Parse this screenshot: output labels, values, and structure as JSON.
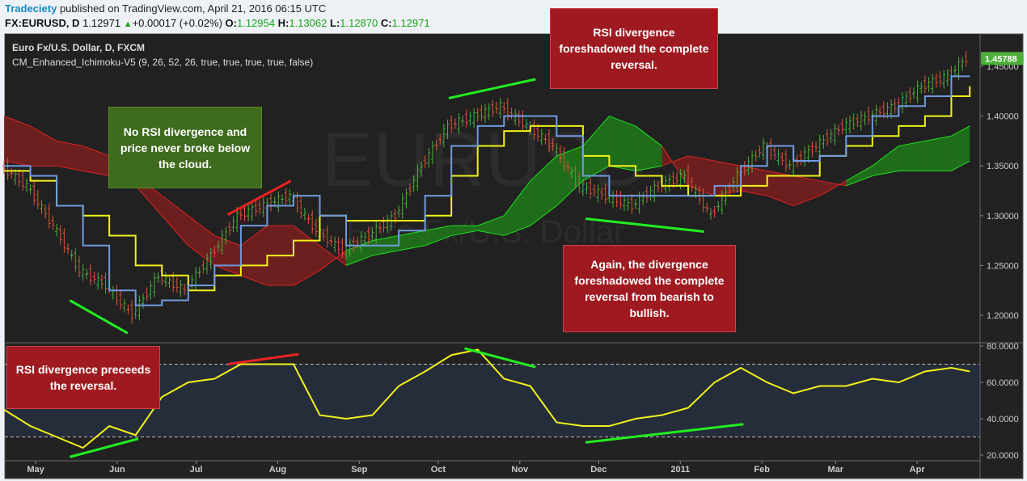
{
  "header": {
    "brand": "Tradeciety",
    "published": "published on TradingView.com, April 21, 2016 06:15 UTC",
    "symbol": "FX:EURUSD, D",
    "last": "1.12971",
    "change": "+0.00017 (+0.02%)",
    "open_label": "O:",
    "open": "1.12954",
    "high_label": "H:",
    "high": "1.13062",
    "low_label": "L:",
    "low": "1.12870",
    "close_label": "C:",
    "close": "1.12971",
    "change_icon": "triangle-up-icon"
  },
  "legend": {
    "title": "Euro Fx/U.S. Dollar, D, FXCM",
    "indicator": "CM_Enhanced_Ichimoku-V5 (9, 26, 52, 26, true, true, true, true, false)"
  },
  "watermark": {
    "symbol": "EURUSD",
    "description": "Euro Fx/U.S. Dollar"
  },
  "annotations": [
    {
      "text": "No RSI divergence and price never broke below the  cloud.",
      "color": "#3e6b1d"
    },
    {
      "text": "RSI divergence foreshadowed the complete reversal.",
      "color": "#9e1a20"
    },
    {
      "text": "Again, the divergence foreshadowed the complete reversal from bearish to bullish.",
      "color": "#9e1a20"
    },
    {
      "text": "RSI divergence preceeds the reversal.",
      "color": "#9e1a20"
    }
  ],
  "chart_data": [
    {
      "type": "line",
      "panel": "price",
      "ylim": [
        1.17,
        1.47
      ],
      "yticks": [
        "1.45000",
        "1.40000",
        "1.35000",
        "1.30000",
        "1.25000",
        "1.20000"
      ],
      "last_price_label": "1.45788",
      "xticks": [
        {
          "date": "2010-05-01",
          "label": "May"
        },
        {
          "date": "2010-06-01",
          "label": "Jun"
        },
        {
          "date": "2010-07-01",
          "label": "Jul"
        },
        {
          "date": "2010-08-01",
          "label": "Aug"
        },
        {
          "date": "2010-09-01",
          "label": "Sep"
        },
        {
          "date": "2010-10-01",
          "label": "Oct"
        },
        {
          "date": "2010-11-01",
          "label": "Nov"
        },
        {
          "date": "2010-12-01",
          "label": "Dec"
        },
        {
          "date": "2011-01-01",
          "label": "2011"
        },
        {
          "date": "2011-02-01",
          "label": "Feb"
        },
        {
          "date": "2011-03-01",
          "label": "Mar"
        },
        {
          "date": "2011-04-01",
          "label": "Apr"
        }
      ],
      "dates": [
        "2010-04-19",
        "2010-04-29",
        "2010-05-09",
        "2010-05-19",
        "2010-05-29",
        "2010-06-08",
        "2010-06-18",
        "2010-06-28",
        "2010-07-08",
        "2010-07-18",
        "2010-07-28",
        "2010-08-07",
        "2010-08-17",
        "2010-08-27",
        "2010-09-06",
        "2010-09-16",
        "2010-09-26",
        "2010-10-06",
        "2010-10-16",
        "2010-10-26",
        "2010-11-05",
        "2010-11-15",
        "2010-11-25",
        "2010-12-05",
        "2010-12-15",
        "2010-12-25",
        "2011-01-04",
        "2011-01-14",
        "2011-01-24",
        "2011-02-03",
        "2011-02-13",
        "2011-02-23",
        "2011-03-05",
        "2011-03-15",
        "2011-03-25",
        "2011-04-04",
        "2011-04-14",
        "2011-04-21"
      ],
      "close": [
        1.35,
        1.33,
        1.29,
        1.245,
        1.23,
        1.2,
        1.24,
        1.225,
        1.26,
        1.3,
        1.31,
        1.32,
        1.285,
        1.265,
        1.28,
        1.3,
        1.35,
        1.39,
        1.4,
        1.41,
        1.39,
        1.37,
        1.33,
        1.32,
        1.31,
        1.33,
        1.34,
        1.3,
        1.34,
        1.37,
        1.35,
        1.37,
        1.39,
        1.4,
        1.41,
        1.43,
        1.44,
        1.458
      ],
      "tenkan": [
        1.35,
        1.34,
        1.31,
        1.27,
        1.225,
        1.21,
        1.215,
        1.23,
        1.25,
        1.29,
        1.31,
        1.32,
        1.3,
        1.27,
        1.27,
        1.285,
        1.32,
        1.37,
        1.39,
        1.4,
        1.4,
        1.38,
        1.34,
        1.32,
        1.32,
        1.32,
        1.32,
        1.33,
        1.35,
        1.37,
        1.355,
        1.36,
        1.38,
        1.4,
        1.41,
        1.42,
        1.44,
        1.44
      ],
      "kijun": [
        1.345,
        1.335,
        1.31,
        1.3,
        1.28,
        1.25,
        1.24,
        1.225,
        1.24,
        1.25,
        1.26,
        1.275,
        1.3,
        1.295,
        1.295,
        1.295,
        1.3,
        1.34,
        1.37,
        1.385,
        1.39,
        1.39,
        1.36,
        1.35,
        1.34,
        1.33,
        1.32,
        1.32,
        1.33,
        1.34,
        1.34,
        1.36,
        1.37,
        1.38,
        1.39,
        1.4,
        1.42,
        1.43
      ],
      "span_a": [
        1.355,
        1.35,
        1.35,
        1.345,
        1.34,
        1.33,
        1.3,
        1.27,
        1.25,
        1.24,
        1.23,
        1.23,
        1.245,
        1.265,
        1.275,
        1.28,
        1.285,
        1.29,
        1.29,
        1.3,
        1.335,
        1.36,
        1.37,
        1.4,
        1.39,
        1.37,
        1.33,
        1.32,
        1.325,
        1.32,
        1.31,
        1.32,
        1.335,
        1.35,
        1.37,
        1.375,
        1.38,
        1.39
      ],
      "span_b": [
        1.4,
        1.39,
        1.375,
        1.37,
        1.36,
        1.34,
        1.32,
        1.3,
        1.28,
        1.27,
        1.29,
        1.29,
        1.27,
        1.25,
        1.26,
        1.265,
        1.27,
        1.28,
        1.285,
        1.28,
        1.29,
        1.31,
        1.335,
        1.35,
        1.345,
        1.35,
        1.36,
        1.355,
        1.35,
        1.345,
        1.34,
        1.335,
        1.33,
        1.34,
        1.345,
        1.345,
        1.345,
        1.355
      ],
      "colors": {
        "up_bar": "#4caf3a",
        "down_bar": "#e0533a",
        "tenkan": "#6f9be0",
        "kijun": "#f2f21a",
        "cloud_bull": "#1e7a1a",
        "cloud_bear": "#7a1e1e"
      },
      "divergence_lines": [
        {
          "from": [
            "2010-05-14",
            1.215
          ],
          "to": [
            "2010-06-05",
            1.182
          ],
          "color": "#22ee22"
        },
        {
          "from": [
            "2010-07-13",
            1.301
          ],
          "to": [
            "2010-08-06",
            1.335
          ],
          "color": "#ee2222"
        },
        {
          "from": [
            "2010-10-05",
            1.418
          ],
          "to": [
            "2010-11-07",
            1.437
          ],
          "color": "#22ee22"
        },
        {
          "from": [
            "2010-11-26",
            1.297
          ],
          "to": [
            "2011-01-10",
            1.284
          ],
          "color": "#22ee22"
        }
      ]
    },
    {
      "type": "line",
      "panel": "rsi",
      "ylim": [
        15,
        82
      ],
      "yticks": [
        "80.0000",
        "60.0000",
        "40.0000",
        "20.0000"
      ],
      "bands": [
        70,
        30
      ],
      "values": [
        45,
        36,
        30,
        24,
        36,
        31,
        52,
        60,
        62,
        70,
        70,
        70,
        42,
        40,
        42,
        58,
        66,
        75,
        78,
        62,
        58,
        38,
        36,
        36,
        40,
        42,
        46,
        60,
        68,
        60,
        54,
        58,
        58,
        62,
        60,
        66,
        68,
        66
      ],
      "color": "#f2f21a",
      "divergence_lines": [
        {
          "from": [
            "2010-05-14",
            19
          ],
          "to": [
            "2010-06-09",
            29
          ],
          "color": "#22ee22"
        },
        {
          "from": [
            "2010-07-13",
            70
          ],
          "to": [
            "2010-08-09",
            75.5
          ],
          "color": "#ee2222"
        },
        {
          "from": [
            "2010-10-11",
            78.7
          ],
          "to": [
            "2010-11-07",
            68.4
          ],
          "color": "#22ee22"
        },
        {
          "from": [
            "2010-11-26",
            27
          ],
          "to": [
            "2011-01-25",
            37
          ],
          "color": "#22ee22"
        }
      ]
    }
  ]
}
